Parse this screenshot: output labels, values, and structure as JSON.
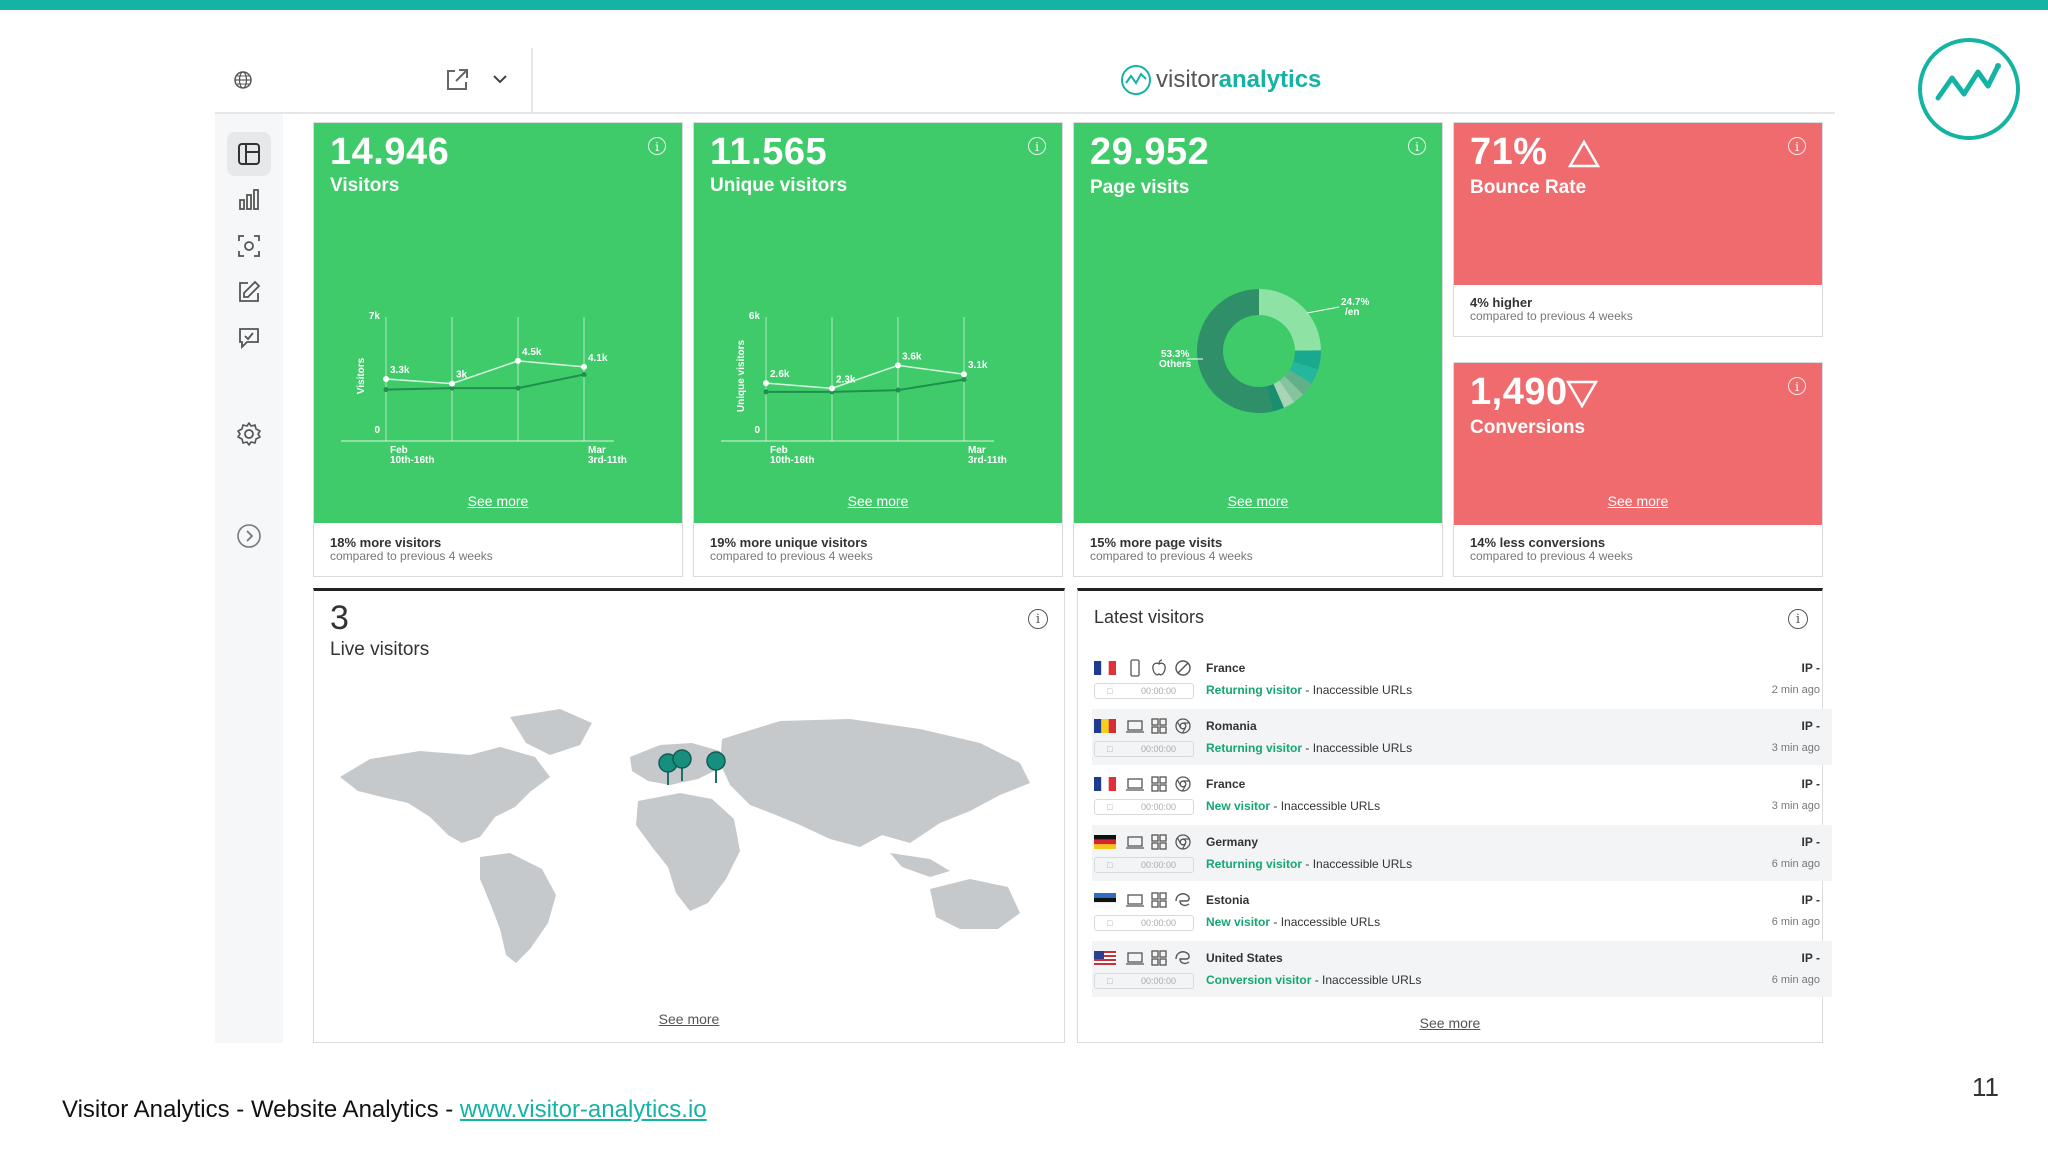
{
  "brand": {
    "part1": "visitor",
    "part2": "analytics"
  },
  "header": {
    "globe_icon": "globe-icon",
    "export_icon": "external-link-icon",
    "dropdown_icon": "chevron-down-icon"
  },
  "sidebar": {
    "items": [
      "dashboard-icon",
      "bar-chart-icon",
      "heatmap-scan-icon",
      "edit-icon",
      "feedback-chat-icon",
      "settings-icon",
      "expand-arrow-icon"
    ]
  },
  "cards": {
    "visitors": {
      "value": "14.946",
      "label": "Visitors",
      "see_more": "See more",
      "footer_bold": "18% more visitors",
      "footer_sub": "compared to previous 4 weeks"
    },
    "unique": {
      "value": "11.565",
      "label": "Unique visitors",
      "see_more": "See more",
      "footer_bold": "19% more unique visitors",
      "footer_sub": "compared to previous 4 weeks"
    },
    "pages": {
      "value": "29.952",
      "label": "Page visits",
      "see_more": "See more",
      "footer_bold": "15% more page visits",
      "footer_sub": "compared to previous 4 weeks"
    },
    "bounce": {
      "value": "71%",
      "label": "Bounce Rate",
      "trend": "up",
      "footer_bold": "4% higher",
      "footer_sub": "compared to previous 4 weeks"
    },
    "conversions": {
      "value": "1,490",
      "label": "Conversions",
      "trend": "down",
      "see_more": "See more",
      "footer_bold": "14% less conversions",
      "footer_sub": "compared to previous 4 weeks"
    }
  },
  "charts": {
    "visitors": {
      "ylabel": "Visitors",
      "ymax_label": "7k",
      "ymin_label": "0",
      "x_labels": [
        [
          "Feb",
          "10th-16th"
        ],
        [
          "Mar",
          "3rd-11th"
        ]
      ],
      "current": [
        3.3,
        3.0,
        4.5,
        4.1
      ],
      "point_labels": [
        "3.3k",
        "3k",
        "4.5k",
        "4.1k"
      ],
      "previous": [
        2.6,
        2.7,
        2.7,
        3.6
      ],
      "ymax": 7
    },
    "unique": {
      "ylabel": "Unique visitors",
      "ymax_label": "6k",
      "ymin_label": "0",
      "x_labels": [
        [
          "Feb",
          "10th-16th"
        ],
        [
          "Mar",
          "3rd-11th"
        ]
      ],
      "current": [
        2.6,
        2.3,
        3.6,
        3.1
      ],
      "point_labels": [
        "2.6k",
        "2.3k",
        "3.6k",
        "3.1k"
      ],
      "previous": [
        2.1,
        2.1,
        2.2,
        2.8
      ],
      "ymax": 6
    },
    "pages": {
      "slices": [
        {
          "name": "/en",
          "label": "24.7%",
          "value": 24.7,
          "color": "#8ee3a4"
        },
        {
          "name": "",
          "label": "",
          "value": 5,
          "color": "#1aa98e"
        },
        {
          "name": "",
          "label": "",
          "value": 4,
          "color": "#25b79c"
        },
        {
          "name": "",
          "label": "",
          "value": 3.5,
          "color": "#61b08a"
        },
        {
          "name": "",
          "label": "",
          "value": 3,
          "color": "#85c49e"
        },
        {
          "name": "",
          "label": "",
          "value": 3,
          "color": "#a7d5b5"
        },
        {
          "name": "",
          "label": "",
          "value": 3,
          "color": "#1a8f6f"
        },
        {
          "name": "Others",
          "label": "53.3%",
          "value": 53.3,
          "color": "#2f8f68"
        }
      ]
    }
  },
  "live": {
    "count": "3",
    "label": "Live visitors",
    "see_more": "See more",
    "pins": 3
  },
  "latest": {
    "title": "Latest visitors",
    "see_more": "See more",
    "rows": [
      {
        "country": "France",
        "flag": "fr",
        "device": "mobile",
        "os": "apple",
        "browser": "blocked",
        "ip": "IP -",
        "duration": "00:00:00",
        "type": "Returning visitor",
        "urls": "- Inaccessible URLs",
        "time": "2 min ago"
      },
      {
        "country": "Romania",
        "flag": "ro",
        "device": "desktop",
        "os": "windows",
        "browser": "chrome",
        "ip": "IP -",
        "duration": "00:00:00",
        "type": "Returning visitor",
        "urls": "- Inaccessible URLs",
        "time": "3 min ago"
      },
      {
        "country": "France",
        "flag": "fr",
        "device": "desktop",
        "os": "windows",
        "browser": "chrome",
        "ip": "IP -",
        "duration": "00:00:00",
        "type": "New visitor",
        "urls": "- Inaccessible URLs",
        "time": "3 min ago"
      },
      {
        "country": "Germany",
        "flag": "de",
        "device": "desktop",
        "os": "windows",
        "browser": "chrome",
        "ip": "IP -",
        "duration": "00:00:00",
        "type": "Returning visitor",
        "urls": "- Inaccessible URLs",
        "time": "6 min ago"
      },
      {
        "country": "Estonia",
        "flag": "ee",
        "device": "desktop",
        "os": "windows",
        "browser": "edge",
        "ip": "IP -",
        "duration": "00:00:00",
        "type": "New visitor",
        "urls": "- Inaccessible URLs",
        "time": "6 min ago"
      },
      {
        "country": "United States",
        "flag": "us",
        "device": "desktop",
        "os": "windows",
        "browser": "edge",
        "ip": "IP -",
        "duration": "00:00:00",
        "type": "Conversion visitor",
        "urls": "- Inaccessible URLs",
        "time": "6 min ago"
      }
    ]
  },
  "footer": {
    "text": "Visitor Analytics - Website Analytics  - ",
    "link": "www.visitor-analytics.io"
  },
  "slide_number": "11",
  "colors": {
    "accent": "#14b3a4",
    "green": "#3fcb6a",
    "red": "#ef6b6e"
  }
}
